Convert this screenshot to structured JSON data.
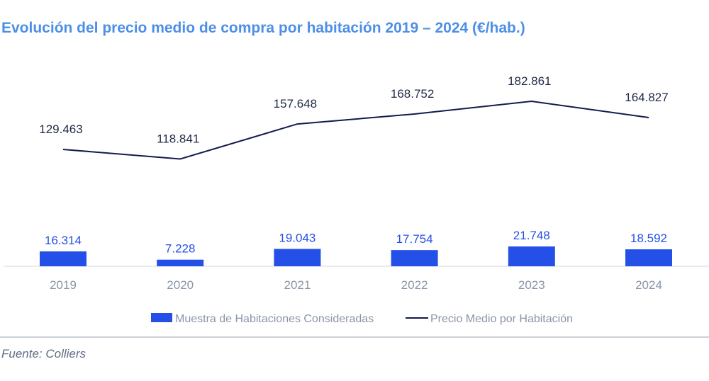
{
  "title": "Evolución del precio medio de compra por habitación 2019 – 2024 (€/hab.)",
  "source": "Fuente: Colliers",
  "chart_data": {
    "type": "bar",
    "categories": [
      "2019",
      "2020",
      "2021",
      "2022",
      "2023",
      "2024"
    ],
    "series": [
      {
        "name": "Muestra de Habitaciones Consideradas",
        "type": "bar",
        "values": [
          16314,
          7228,
          19043,
          17754,
          21748,
          18592
        ],
        "labels": [
          "16.314",
          "7.228",
          "19.043",
          "17.754",
          "21.748",
          "18.592"
        ],
        "color": "#2550e8"
      },
      {
        "name": "Precio Medio por Habitación",
        "type": "line",
        "values": [
          129463,
          118841,
          157648,
          168752,
          182861,
          164827
        ],
        "labels": [
          "129.463",
          "118.841",
          "157.648",
          "168.752",
          "182.861",
          "164.827"
        ],
        "color": "#131a4f"
      }
    ],
    "legend_position": "bottom",
    "grid": false
  },
  "colors": {
    "title": "#4d8fe6",
    "bar": "#2550e8",
    "line": "#131a4f"
  }
}
